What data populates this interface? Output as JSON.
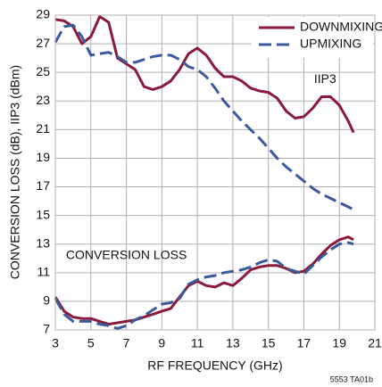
{
  "chart_data": {
    "type": "line",
    "xlabel": "RF FREQUENCY (GHz)",
    "ylabel": "CONVERSION LOSS (dB), IIP3 (dBm)",
    "annotations": [
      "IIP3",
      "CONVERSION LOSS"
    ],
    "footnote": "5553 TA01b",
    "x": [
      3,
      3.5,
      4,
      4.5,
      5,
      5.5,
      6,
      6.5,
      7,
      7.5,
      8,
      8.5,
      9,
      9.5,
      10,
      10.5,
      11,
      11.5,
      12,
      12.5,
      13,
      13.5,
      14,
      14.5,
      15,
      15.5,
      16,
      16.5,
      17,
      17.5,
      18,
      18.5,
      19,
      19.5,
      19.8
    ],
    "series": [
      {
        "name": "DOWNMIXING",
        "color": "#8b1a3a",
        "linestyle": "solid",
        "curves": [
          {
            "values": [
              28.7,
              28.6,
              28.2,
              27,
              27.5,
              28.9,
              28.5,
              26,
              25.6,
              25.2,
              24,
              23.8,
              24,
              24.4,
              25.2,
              26.3,
              26.7,
              26.2,
              25.3,
              24.7,
              24.7,
              24.4,
              23.9,
              23.7,
              23.6,
              23.2,
              22.3,
              21.8,
              21.9,
              22.5,
              23.3,
              23.3,
              22.7,
              21.6,
              20.8
            ]
          },
          {
            "values": [
              9.3,
              8.3,
              7.9,
              7.8,
              7.8,
              7.6,
              7.4,
              7.5,
              7.6,
              7.7,
              7.9,
              8.1,
              8.3,
              8.5,
              9.3,
              10.1,
              10.4,
              10.1,
              10,
              10.3,
              10.1,
              10.6,
              11.2,
              11.4,
              11.5,
              11.5,
              11.3,
              11,
              11.1,
              11.6,
              12.3,
              12.9,
              13.3,
              13.5,
              13.3
            ]
          }
        ]
      },
      {
        "name": "UPMIXING",
        "color": "#3a5a9c",
        "linestyle": "dashed",
        "curves": [
          {
            "values": [
              27.1,
              28.2,
              28.3,
              27.5,
              26.2,
              26.3,
              26.4,
              26.1,
              25.7,
              25.7,
              25.9,
              26.1,
              26.2,
              26.2,
              25.9,
              25.4,
              25.2,
              24.7,
              23.9,
              23,
              22.3,
              21.6,
              21,
              20.4,
              19.7,
              19,
              18.4,
              17.9,
              17.4,
              16.9,
              16.5,
              16.2,
              15.9,
              15.6,
              15.4
            ]
          },
          {
            "values": [
              9.2,
              8.1,
              7.6,
              7.6,
              7.6,
              7.4,
              7.3,
              7.1,
              7.3,
              7.7,
              8,
              8.4,
              8.8,
              8.9,
              9.2,
              10.2,
              10.5,
              10.7,
              10.8,
              11,
              11.1,
              11.2,
              11.4,
              11.7,
              11.9,
              11.8,
              11.3,
              11.1,
              10.9,
              11.5,
              12.1,
              12.6,
              13,
              13.1,
              13
            ]
          }
        ]
      }
    ],
    "xlim": [
      3,
      21
    ],
    "xticks": [
      3,
      5,
      7,
      9,
      11,
      13,
      15,
      17,
      19,
      21
    ],
    "ylim": [
      7,
      29
    ],
    "yticks": [
      7,
      9,
      11,
      13,
      15,
      17,
      19,
      21,
      23,
      25,
      27,
      29
    ],
    "grid": true,
    "legend": "upper right"
  }
}
